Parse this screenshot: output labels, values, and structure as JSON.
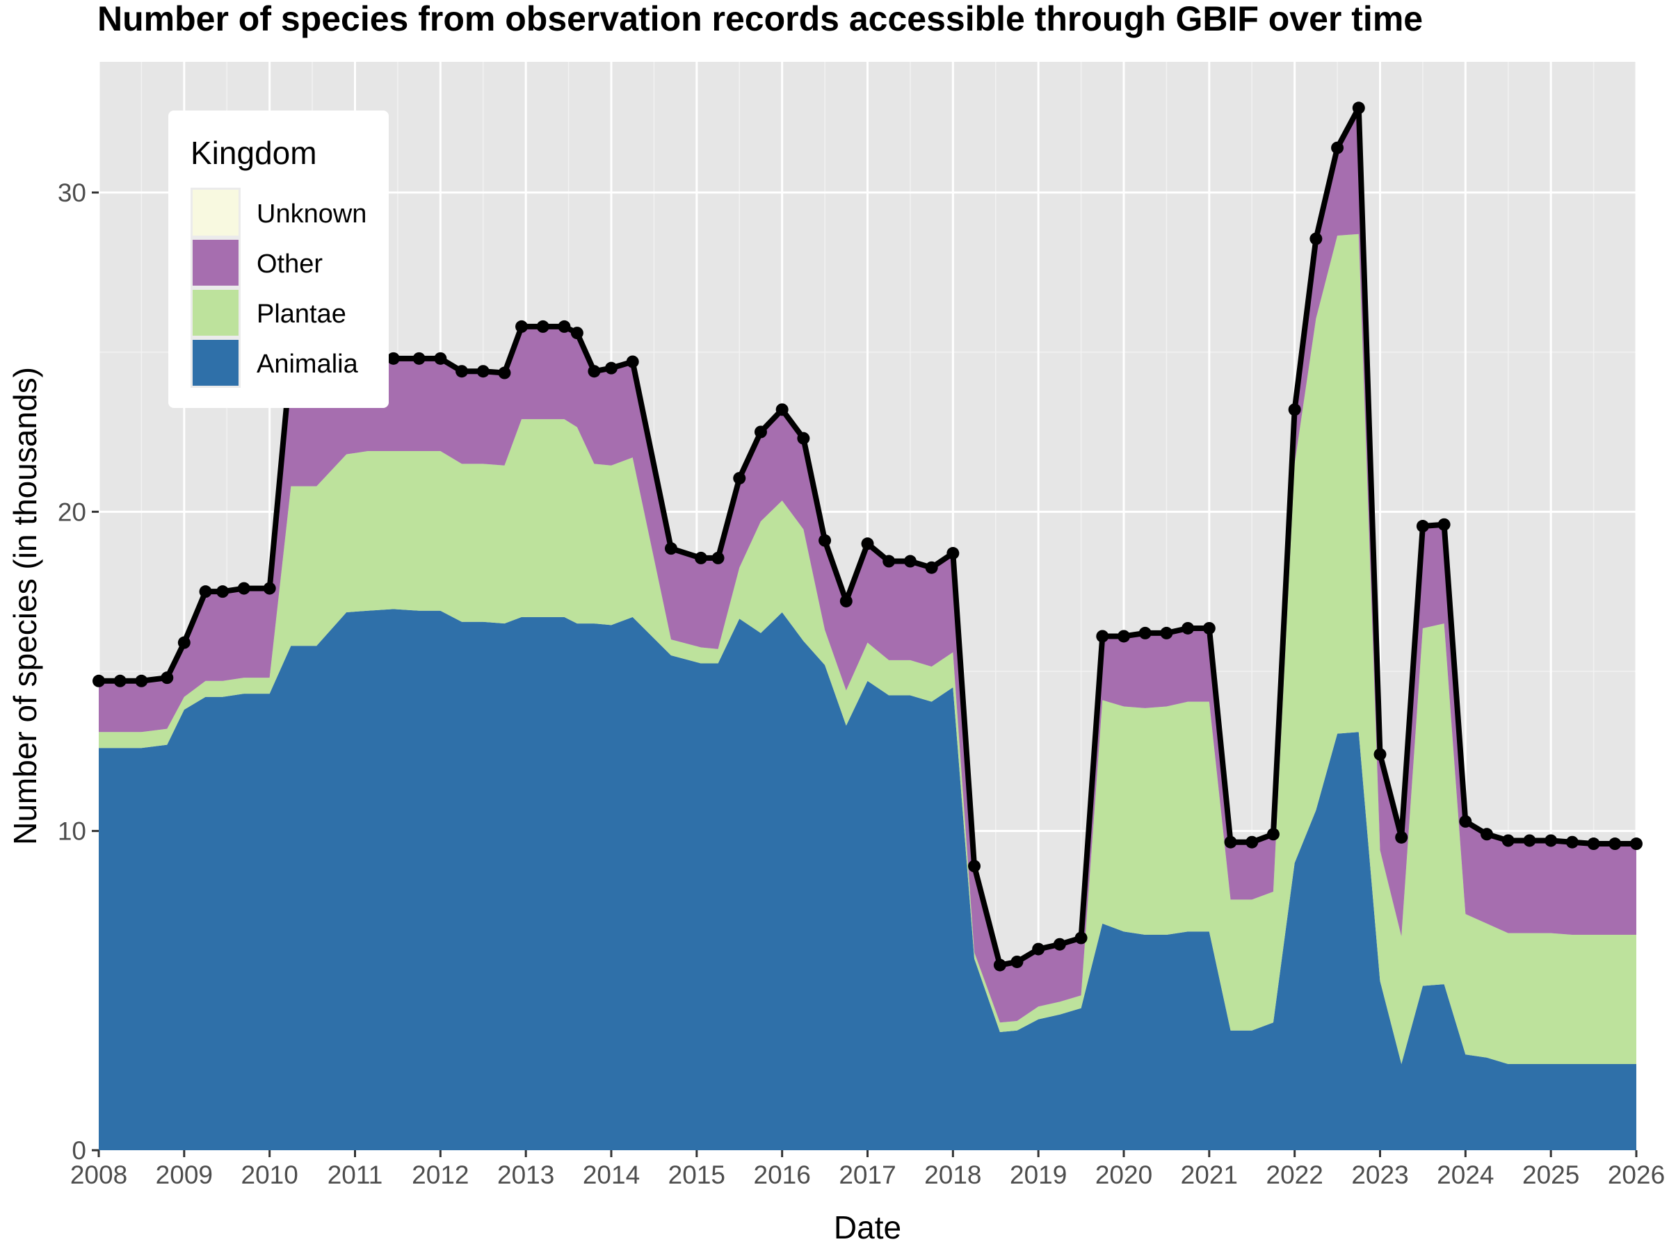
{
  "chart_data": {
    "type": "area",
    "title": "Number of species from observation records accessible through GBIF over time",
    "xlabel": "Date",
    "ylabel": "Number of species (in thousands)",
    "xlim": [
      2008,
      2026
    ],
    "ylim": [
      0,
      33
    ],
    "x_ticks": [
      "2008",
      "2009",
      "2010",
      "2011",
      "2012",
      "2013",
      "2014",
      "2015",
      "2016",
      "2017",
      "2018",
      "2019",
      "2020",
      "2021",
      "2022",
      "2023",
      "2024",
      "2025",
      "2026"
    ],
    "y_ticks": [
      "0",
      "10",
      "20",
      "30"
    ],
    "grid": true,
    "stacked": true,
    "legend": {
      "title": "Kingdom",
      "position": "top-left",
      "entries": [
        {
          "name": "Unknown",
          "color": "#f8f9e0"
        },
        {
          "name": "Other",
          "color": "#a66eaf"
        },
        {
          "name": "Plantae",
          "color": "#bde29c"
        },
        {
          "name": "Animalia",
          "color": "#2f70a9"
        }
      ]
    },
    "x": [
      2008.0,
      2008.25,
      2008.5,
      2008.8,
      2009.0,
      2009.25,
      2009.45,
      2009.7,
      2010.0,
      2010.25,
      2010.55,
      2010.9,
      2011.15,
      2011.45,
      2011.75,
      2012.0,
      2012.25,
      2012.5,
      2012.75,
      2012.95,
      2013.2,
      2013.45,
      2013.6,
      2013.8,
      2014.0,
      2014.25,
      2014.7,
      2015.05,
      2015.25,
      2015.5,
      2015.75,
      2016.0,
      2016.25,
      2016.5,
      2016.75,
      2017.0,
      2017.25,
      2017.5,
      2017.75,
      2018.0,
      2018.25,
      2018.55,
      2018.75,
      2019.0,
      2019.25,
      2019.5,
      2019.75,
      2020.0,
      2020.25,
      2020.5,
      2020.75,
      2021.0,
      2021.25,
      2021.5,
      2021.75,
      2022.0,
      2022.25,
      2022.5,
      2022.75,
      2023.0,
      2023.25,
      2023.5,
      2023.75,
      2024.0,
      2024.25,
      2024.5,
      2024.75,
      2025.0,
      2025.25,
      2025.5,
      2025.75,
      2026.0
    ],
    "series": [
      {
        "name": "Animalia",
        "color": "#2f70a9",
        "values": [
          12.6,
          12.6,
          12.6,
          12.7,
          13.8,
          14.2,
          14.2,
          14.3,
          14.3,
          15.8,
          15.8,
          16.85,
          16.9,
          16.95,
          16.9,
          16.9,
          16.55,
          16.55,
          16.5,
          16.7,
          16.7,
          16.7,
          16.5,
          16.5,
          16.45,
          16.7,
          15.5,
          15.25,
          15.25,
          16.65,
          16.2,
          16.85,
          15.95,
          15.2,
          13.3,
          14.7,
          14.25,
          14.25,
          14.05,
          14.5,
          6.0,
          3.7,
          3.75,
          4.1,
          4.25,
          4.45,
          7.1,
          6.85,
          6.75,
          6.75,
          6.85,
          6.85,
          3.75,
          3.75,
          4.0,
          9.0,
          10.65,
          13.05,
          13.1,
          5.3,
          2.7,
          5.15,
          5.2,
          3.0,
          2.9,
          2.7,
          2.7,
          2.7,
          2.7,
          2.7,
          2.7,
          2.7
        ]
      },
      {
        "name": "Plantae",
        "color": "#bde29c",
        "values": [
          0.5,
          0.5,
          0.5,
          0.5,
          0.4,
          0.5,
          0.5,
          0.5,
          0.5,
          5.0,
          5.0,
          4.95,
          5.0,
          4.95,
          5.0,
          5.0,
          4.95,
          4.95,
          4.95,
          6.2,
          6.2,
          6.2,
          6.15,
          5.0,
          5.0,
          5.0,
          0.5,
          0.5,
          0.45,
          1.6,
          3.5,
          3.5,
          3.5,
          1.1,
          1.1,
          1.2,
          1.1,
          1.1,
          1.1,
          1.1,
          0.2,
          0.3,
          0.3,
          0.4,
          0.4,
          0.4,
          7.0,
          7.05,
          7.1,
          7.15,
          7.2,
          7.2,
          4.1,
          4.1,
          4.1,
          12.5,
          15.4,
          15.6,
          15.6,
          4.1,
          4.0,
          11.2,
          11.3,
          4.4,
          4.2,
          4.1,
          4.1,
          4.1,
          4.05,
          4.05,
          4.05,
          4.05
        ]
      },
      {
        "name": "Other",
        "color": "#a66eaf",
        "values": [
          1.6,
          1.6,
          1.6,
          1.6,
          1.7,
          2.8,
          2.8,
          2.8,
          2.8,
          4.0,
          4.0,
          3.0,
          2.9,
          2.9,
          2.9,
          2.9,
          2.9,
          2.9,
          2.9,
          2.9,
          2.9,
          2.9,
          2.95,
          2.9,
          3.05,
          3.0,
          2.85,
          2.8,
          2.85,
          2.8,
          2.8,
          2.85,
          2.85,
          2.8,
          2.8,
          3.1,
          3.1,
          3.1,
          3.1,
          3.1,
          2.7,
          1.8,
          1.85,
          1.8,
          1.8,
          1.8,
          2.0,
          2.2,
          2.35,
          2.3,
          2.3,
          2.3,
          1.8,
          1.8,
          1.8,
          1.7,
          2.5,
          2.75,
          3.95,
          3.0,
          3.1,
          3.2,
          3.1,
          2.9,
          2.8,
          2.9,
          2.9,
          2.9,
          2.9,
          2.85,
          2.85,
          2.85
        ]
      },
      {
        "name": "Unknown",
        "color": "#f8f9e0",
        "values": [
          0,
          0,
          0,
          0,
          0,
          0,
          0,
          0,
          0,
          0,
          0,
          0,
          0,
          0,
          0,
          0,
          0,
          0,
          0,
          0,
          0,
          0,
          0,
          0,
          0,
          0,
          0,
          0,
          0,
          0,
          0,
          0,
          0,
          0,
          0,
          0,
          0,
          0,
          0,
          0,
          0,
          0,
          0,
          0,
          0,
          0,
          0,
          0,
          0,
          0,
          0,
          0,
          0,
          0,
          0,
          0,
          0,
          0,
          0,
          0,
          0,
          0,
          0,
          0,
          0,
          0,
          0,
          0,
          0,
          0,
          0,
          0
        ]
      }
    ],
    "total_line": {
      "name": "Total",
      "color": "#000000",
      "values": [
        14.7,
        14.7,
        14.7,
        14.8,
        15.9,
        17.5,
        17.5,
        17.6,
        17.6,
        24.8,
        24.8,
        24.8,
        24.8,
        24.8,
        24.8,
        24.8,
        24.4,
        24.4,
        24.35,
        25.8,
        25.8,
        25.8,
        25.6,
        24.4,
        24.5,
        24.7,
        18.85,
        18.55,
        18.55,
        21.05,
        22.5,
        23.2,
        22.3,
        19.1,
        17.2,
        19.0,
        18.45,
        18.45,
        18.25,
        18.7,
        8.9,
        5.8,
        5.9,
        6.3,
        6.45,
        6.65,
        16.1,
        16.1,
        16.2,
        16.2,
        16.35,
        16.35,
        9.65,
        9.65,
        9.9,
        23.2,
        28.55,
        31.4,
        32.65,
        12.4,
        9.8,
        19.55,
        19.6,
        10.3,
        9.9,
        9.7,
        9.7,
        9.7,
        9.65,
        9.6,
        9.6,
        9.6
      ]
    }
  },
  "labels": {
    "title": "Number of species from observation records accessible through GBIF over time",
    "xlabel": "Date",
    "ylabel": "Number of species (in thousands)",
    "legend_title": "Kingdom"
  }
}
